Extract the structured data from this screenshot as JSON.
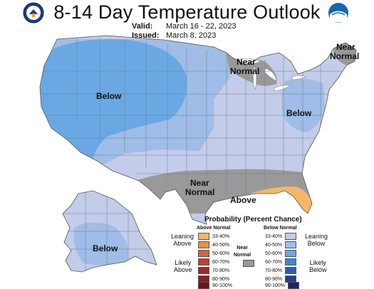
{
  "header": {
    "title": "8-14 Day Temperature Outlook",
    "valid_label": "Valid:",
    "valid_value": "March 16 - 22, 2023",
    "issued_label": "Issued:",
    "issued_value": "March 8, 2023"
  },
  "map_labels": {
    "west_below": "Below",
    "great_lakes_near_1": "Near",
    "great_lakes_near_2": "Normal",
    "northeast_near_1": "Near",
    "northeast_near_2": "Normal",
    "east_below": "Below",
    "south_near_1": "Near",
    "south_near_2": "Normal",
    "florida_above": "Above",
    "alaska_below": "Below"
  },
  "legend": {
    "title": "Probability (Percent Chance)",
    "above_header": "Above Normal",
    "below_header": "Below Normal",
    "near_header_1": "Near",
    "near_header_2": "Normal",
    "leaning_above_1": "Leaning",
    "leaning_above_2": "Above",
    "likely_above_1": "Likely",
    "likely_above_2": "Above",
    "leaning_below_1": "Leaning",
    "leaning_below_2": "Below",
    "likely_below_1": "Likely",
    "likely_below_2": "Below",
    "ranges": [
      "33-40%",
      "40-50%",
      "50-60%",
      "60-70%",
      "70-80%",
      "80-90%",
      "90-100%"
    ],
    "above_colors": [
      "#f2b76a",
      "#e88d4c",
      "#d9623a",
      "#c93b2d",
      "#a8232a",
      "#8a1d25",
      "#6b1419"
    ],
    "below_colors": [
      "#c3cce9",
      "#9fbde6",
      "#6aa8e4",
      "#3f87d3",
      "#2c5fb3",
      "#233f8e",
      "#1e2466"
    ],
    "near_color": "#999999"
  },
  "colors": {
    "below_33_40": "#c3cce9",
    "below_40_50": "#9fbde6",
    "below_50_60": "#6aa8e4",
    "near_normal": "#999999",
    "above_33_40": "#f2b76a"
  }
}
